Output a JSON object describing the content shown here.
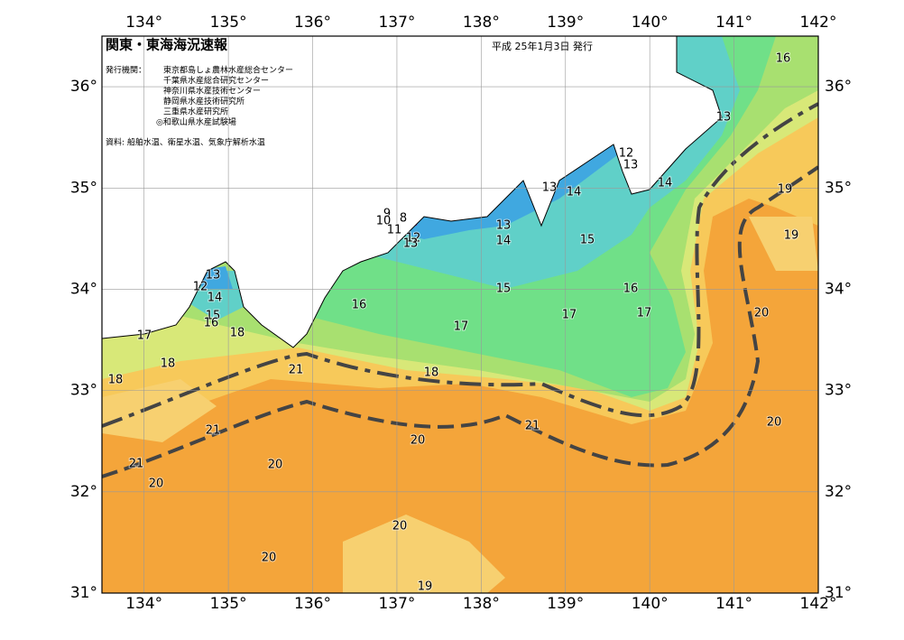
{
  "header": {
    "title": "関東・東海海況速報",
    "date": "平成 25年1月3日 発行"
  },
  "issuers": {
    "label": "発行機関：",
    "names": [
      "東京都島しょ農林水産総合センター",
      "千葉県水産総合研究センター",
      "神奈川県水産技術センター",
      "静岡県水産技術研究所",
      "三重県水産研究所",
      "◎和歌山県水産試験場"
    ]
  },
  "source": "資料: 船舶水温、衛星水温、気象庁解析水温",
  "map": {
    "xlim": [
      133.5,
      142
    ],
    "ylim": [
      31,
      36.5
    ],
    "xticks": [
      {
        "value": 134,
        "label": "134°"
      },
      {
        "value": 135,
        "label": "135°"
      },
      {
        "value": 136,
        "label": "136°"
      },
      {
        "value": 137,
        "label": "137°"
      },
      {
        "value": 138,
        "label": "138°"
      },
      {
        "value": 139,
        "label": "139°"
      },
      {
        "value": 140,
        "label": "140°"
      },
      {
        "value": 141,
        "label": "141°"
      },
      {
        "value": 142,
        "label": "142°"
      }
    ],
    "yticks": [
      {
        "value": 31,
        "label": "31°"
      },
      {
        "value": 32,
        "label": "32°"
      },
      {
        "value": 33,
        "label": "33°"
      },
      {
        "value": 34,
        "label": "34°"
      },
      {
        "value": 35,
        "label": "35°"
      },
      {
        "value": 36,
        "label": "36°"
      }
    ],
    "contour_labels": [
      16,
      13,
      12,
      13,
      14,
      13,
      14,
      19,
      9,
      8,
      10,
      11,
      12,
      13,
      13,
      14,
      15,
      19,
      13,
      12,
      14,
      15,
      16,
      15,
      16,
      16,
      17,
      17,
      20,
      18,
      17,
      17,
      18,
      18,
      21,
      18,
      21,
      20,
      21,
      20,
      21,
      20,
      20,
      20,
      20,
      19
    ]
  }
}
